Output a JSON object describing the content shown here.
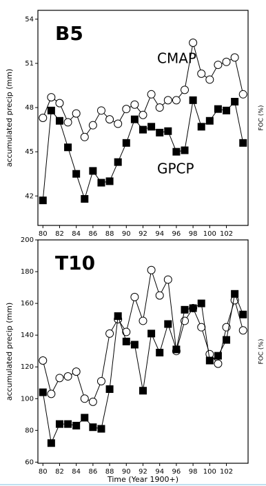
{
  "chart_data": [
    {
      "type": "line",
      "label": "B5",
      "ylabel": "accumulated precip (mm)",
      "y2label": "FOC (%)",
      "x": [
        80,
        81,
        82,
        83,
        84,
        85,
        86,
        87,
        88,
        89,
        90,
        91,
        92,
        93,
        94,
        95,
        96,
        97,
        98,
        99,
        100,
        101,
        102,
        103,
        104
      ],
      "xlim": [
        79.4,
        104.6
      ],
      "xticks": [
        80,
        82,
        84,
        86,
        88,
        90,
        92,
        94,
        96,
        98,
        100,
        102
      ],
      "ylim": [
        40,
        54.6
      ],
      "yticks": [
        42,
        45,
        48,
        51,
        54
      ],
      "series": [
        {
          "name": "CMAP",
          "marker": "circle",
          "color": "#000000",
          "values": [
            47.3,
            48.7,
            48.3,
            47.0,
            47.6,
            46.0,
            46.8,
            47.8,
            47.2,
            46.9,
            47.9,
            48.2,
            47.5,
            48.9,
            48.0,
            48.5,
            48.5,
            49.2,
            52.4,
            50.3,
            49.9,
            50.9,
            51.1,
            51.4,
            48.9
          ]
        },
        {
          "name": "GPCP",
          "marker": "square",
          "color": "#000000",
          "values": [
            41.7,
            47.8,
            47.1,
            45.3,
            43.5,
            41.8,
            43.7,
            42.9,
            43.0,
            44.3,
            45.6,
            47.2,
            46.5,
            46.7,
            46.3,
            46.4,
            45.0,
            45.1,
            48.5,
            46.7,
            47.1,
            47.9,
            47.8,
            48.4,
            45.6
          ]
        }
      ]
    },
    {
      "type": "line",
      "label": "T10",
      "ylabel": "accumulated precip (mm)",
      "y2label": "FOC (%)",
      "xlabel": "Time (Year 1900+)",
      "x": [
        80,
        81,
        82,
        83,
        84,
        85,
        86,
        87,
        88,
        89,
        90,
        91,
        92,
        93,
        94,
        95,
        96,
        97,
        98,
        99,
        100,
        101,
        102,
        103,
        104
      ],
      "xlim": [
        79.4,
        104.6
      ],
      "xticks": [
        80,
        82,
        84,
        86,
        88,
        90,
        92,
        94,
        96,
        98,
        100,
        102
      ],
      "ylim": [
        59.3,
        200
      ],
      "yticks": [
        60,
        80,
        100,
        120,
        140,
        160,
        180,
        200
      ],
      "series": [
        {
          "marker": "circle",
          "color": "#000000",
          "values": [
            124,
            103,
            113,
            114,
            117,
            100,
            98,
            111,
            141,
            150,
            142,
            164,
            149,
            181,
            165,
            175,
            130,
            149,
            157,
            145,
            128,
            122,
            145,
            162,
            143
          ]
        },
        {
          "marker": "square",
          "color": "#000000",
          "values": [
            104,
            72,
            84,
            84,
            83,
            88,
            82,
            81,
            106,
            152,
            136,
            134,
            105,
            141,
            129,
            147,
            131,
            156,
            157,
            160,
            124,
            127,
            137,
            166,
            153
          ]
        }
      ]
    }
  ]
}
